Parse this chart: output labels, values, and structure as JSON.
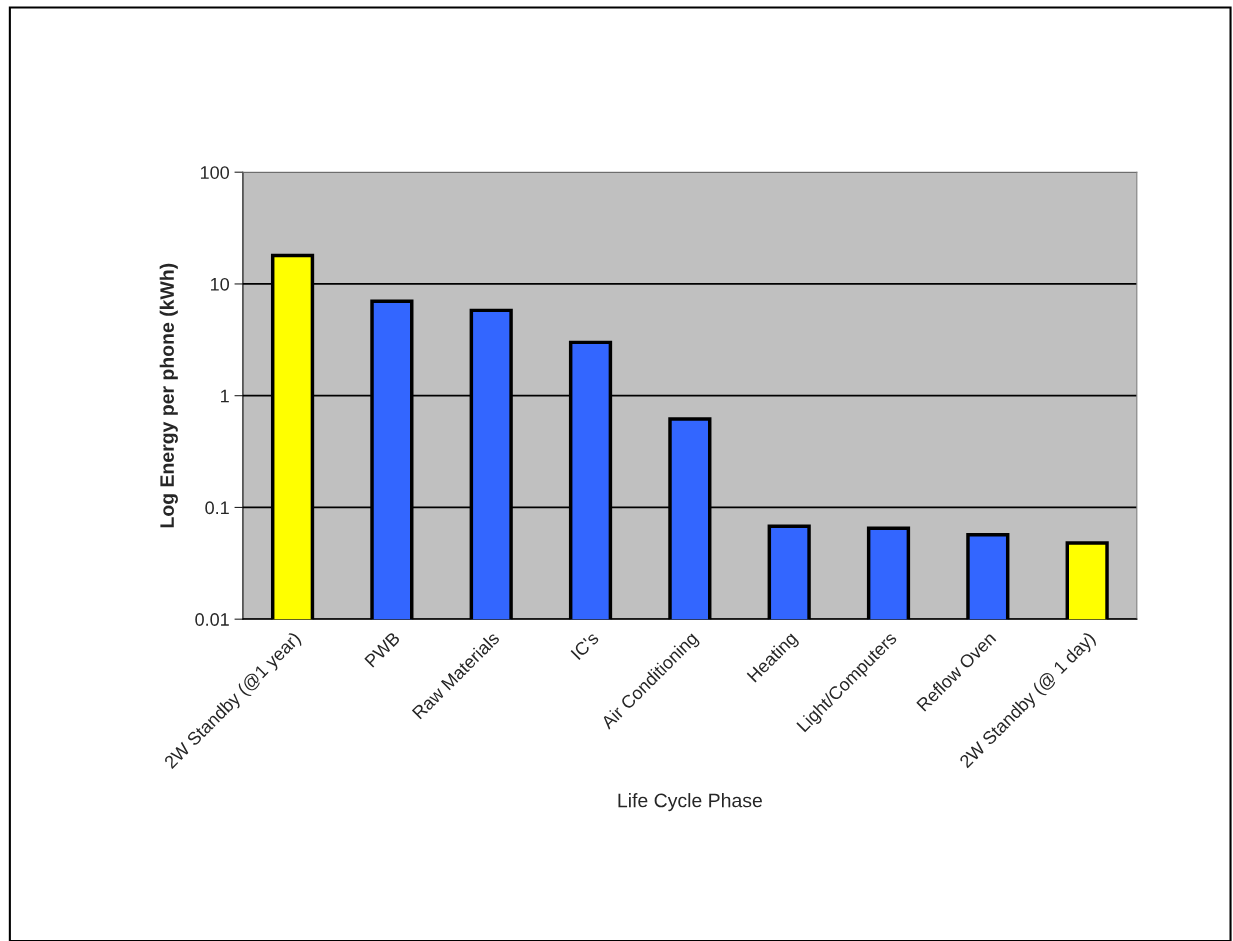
{
  "chart_data": {
    "type": "bar",
    "xlabel": "Life Cycle Phase",
    "ylabel": "Log Energy per phone (kWh)",
    "categories": [
      "2W Standby (@1 year)",
      "PWB",
      "Raw Materials",
      "IC's",
      "Air Conditioning",
      "Heating",
      "Light/Computers",
      "Reflow Oven",
      "2W Standby (@ 1 day)"
    ],
    "values": [
      18,
      7,
      5.8,
      3,
      0.62,
      0.068,
      0.065,
      0.057,
      0.048
    ],
    "colors": [
      "#ffff00",
      "#3366ff",
      "#3366ff",
      "#3366ff",
      "#3366ff",
      "#3366ff",
      "#3366ff",
      "#3366ff",
      "#ffff00"
    ],
    "log": "y",
    "ylim": [
      0.01,
      100
    ],
    "yticks": [
      0.01,
      0.1,
      1,
      10,
      100
    ],
    "grid": "y",
    "legend": false
  }
}
